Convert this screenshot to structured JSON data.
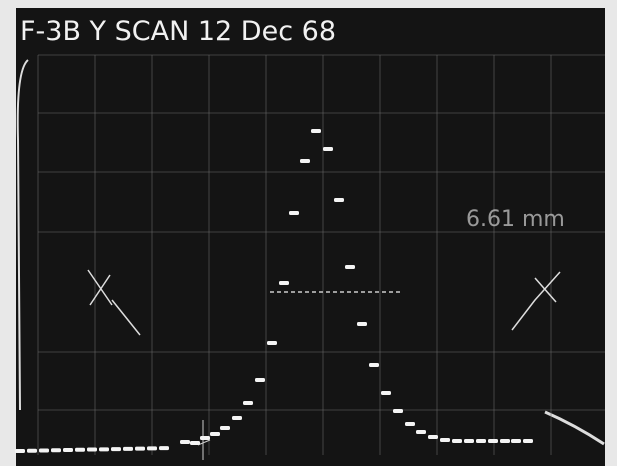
{
  "labels": {
    "title": "F-3B  Y SCAN   12 Dec 68",
    "measurement": "6.61 mm"
  }
}
